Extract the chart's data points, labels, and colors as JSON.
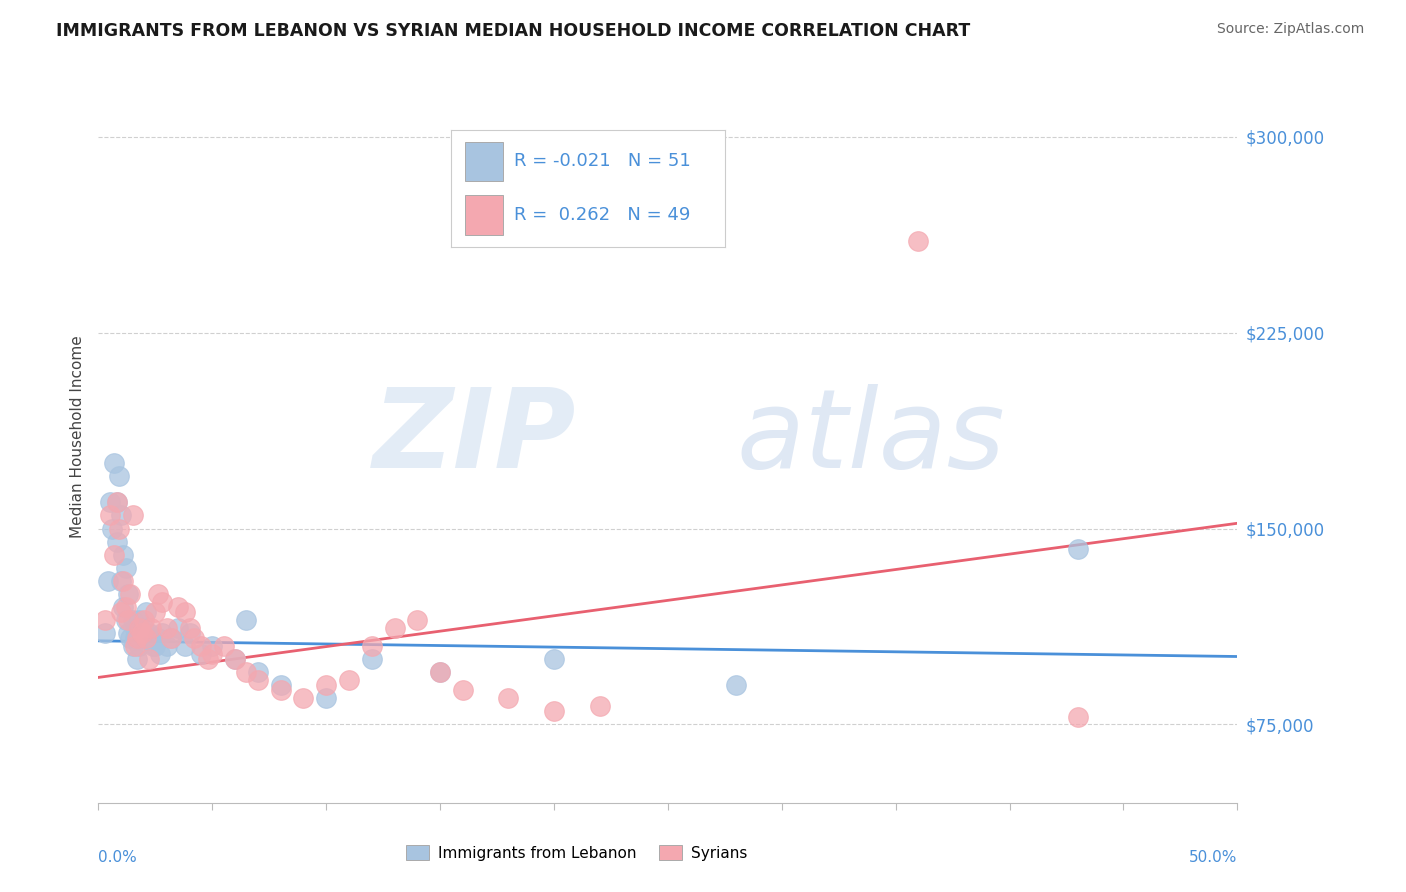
{
  "title": "IMMIGRANTS FROM LEBANON VS SYRIAN MEDIAN HOUSEHOLD INCOME CORRELATION CHART",
  "source": "Source: ZipAtlas.com",
  "ylabel": "Median Household Income",
  "xlim": [
    0.0,
    0.5
  ],
  "ylim": [
    45000,
    325000
  ],
  "yticks": [
    75000,
    150000,
    225000,
    300000
  ],
  "gridline_color": "#d0d0d0",
  "background_color": "#ffffff",
  "lebanon_color": "#a8c4e0",
  "syria_color": "#f4a8b0",
  "lebanon_line_color": "#4a90d9",
  "syria_line_color": "#e86070",
  "text_color": "#4a90d9",
  "legend_R_lebanon": "-0.021",
  "legend_N_lebanon": "51",
  "legend_R_syria": "0.262",
  "legend_N_syria": "49",
  "lebanon_x": [
    0.003,
    0.004,
    0.005,
    0.006,
    0.007,
    0.008,
    0.008,
    0.009,
    0.01,
    0.01,
    0.011,
    0.011,
    0.012,
    0.012,
    0.013,
    0.013,
    0.014,
    0.015,
    0.015,
    0.016,
    0.016,
    0.017,
    0.018,
    0.018,
    0.019,
    0.02,
    0.021,
    0.022,
    0.023,
    0.024,
    0.025,
    0.026,
    0.027,
    0.028,
    0.03,
    0.032,
    0.035,
    0.038,
    0.04,
    0.045,
    0.05,
    0.06,
    0.065,
    0.07,
    0.08,
    0.1,
    0.12,
    0.15,
    0.2,
    0.28,
    0.43
  ],
  "lebanon_y": [
    110000,
    130000,
    160000,
    150000,
    175000,
    160000,
    145000,
    170000,
    155000,
    130000,
    120000,
    140000,
    115000,
    135000,
    125000,
    110000,
    108000,
    115000,
    105000,
    112000,
    108000,
    100000,
    115000,
    105000,
    108000,
    112000,
    118000,
    110000,
    108000,
    105000,
    105000,
    108000,
    102000,
    110000,
    105000,
    108000,
    112000,
    105000,
    110000,
    102000,
    105000,
    100000,
    115000,
    95000,
    90000,
    85000,
    100000,
    95000,
    100000,
    90000,
    142000
  ],
  "syria_x": [
    0.003,
    0.005,
    0.007,
    0.008,
    0.009,
    0.01,
    0.011,
    0.012,
    0.013,
    0.014,
    0.015,
    0.016,
    0.017,
    0.018,
    0.019,
    0.02,
    0.021,
    0.022,
    0.023,
    0.025,
    0.026,
    0.028,
    0.03,
    0.032,
    0.035,
    0.038,
    0.04,
    0.042,
    0.045,
    0.048,
    0.05,
    0.055,
    0.06,
    0.065,
    0.07,
    0.08,
    0.09,
    0.1,
    0.11,
    0.12,
    0.13,
    0.14,
    0.15,
    0.16,
    0.18,
    0.2,
    0.22,
    0.36,
    0.43
  ],
  "syria_y": [
    115000,
    155000,
    140000,
    160000,
    150000,
    118000,
    130000,
    120000,
    115000,
    125000,
    155000,
    105000,
    108000,
    112000,
    110000,
    115000,
    108000,
    100000,
    112000,
    118000,
    125000,
    122000,
    112000,
    108000,
    120000,
    118000,
    112000,
    108000,
    105000,
    100000,
    102000,
    105000,
    100000,
    95000,
    92000,
    88000,
    85000,
    90000,
    92000,
    105000,
    112000,
    115000,
    95000,
    88000,
    85000,
    80000,
    82000,
    260000,
    78000
  ]
}
